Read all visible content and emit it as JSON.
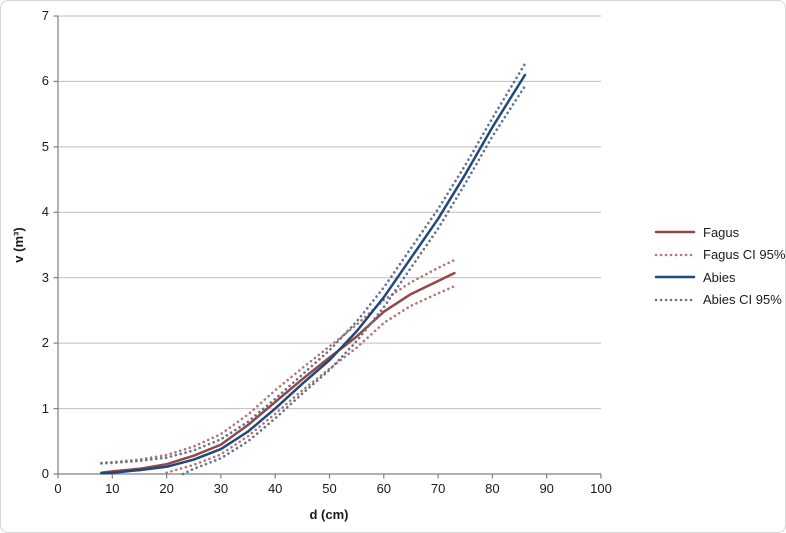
{
  "chart_data": {
    "type": "line",
    "title": "",
    "xlabel": "d (cm)",
    "ylabel": "v (m³)",
    "xlim": [
      0,
      100
    ],
    "ylim": [
      0,
      7
    ],
    "x_ticks": [
      0,
      10,
      20,
      30,
      40,
      50,
      60,
      70,
      80,
      90,
      100
    ],
    "y_ticks": [
      0,
      1,
      2,
      3,
      4,
      5,
      6,
      7
    ],
    "grid": "horizontal-only",
    "legend_position": "right",
    "series": [
      {
        "name": "Fagus",
        "style": "solid",
        "color": "#964643",
        "lines": [
          {
            "x": [
              8,
              10,
              15,
              20,
              25,
              30,
              35,
              40,
              45,
              50,
              55,
              60,
              65,
              70,
              73
            ],
            "y": [
              0.02,
              0.04,
              0.08,
              0.15,
              0.28,
              0.45,
              0.75,
              1.1,
              1.45,
              1.78,
              2.1,
              2.48,
              2.75,
              2.95,
              3.07
            ]
          }
        ]
      },
      {
        "name": "Fagus CI 95%",
        "style": "dotted",
        "color": "#BA7370",
        "lines": [
          {
            "x": [
              8,
              10,
              15,
              20,
              25,
              30,
              35,
              40,
              45,
              50,
              55,
              60,
              65,
              70,
              73
            ],
            "y": [
              0.17,
              0.18,
              0.22,
              0.29,
              0.42,
              0.61,
              0.91,
              1.28,
              1.62,
              1.95,
              2.28,
              2.66,
              2.93,
              3.15,
              3.27
            ]
          },
          {
            "x": [
              20,
              25,
              30,
              35,
              40,
              45,
              50,
              55,
              60,
              65,
              70,
              73
            ],
            "y": [
              0.02,
              0.14,
              0.3,
              0.58,
              0.92,
              1.28,
              1.61,
              1.93,
              2.31,
              2.57,
              2.76,
              2.87
            ]
          }
        ]
      },
      {
        "name": "Abies",
        "style": "solid",
        "color": "#1F497D",
        "lines": [
          {
            "x": [
              8,
              10,
              15,
              20,
              25,
              30,
              35,
              40,
              45,
              50,
              55,
              60,
              65,
              70,
              75,
              80,
              86
            ],
            "y": [
              0.01,
              0.02,
              0.06,
              0.11,
              0.22,
              0.38,
              0.65,
              1.0,
              1.38,
              1.74,
              2.18,
              2.7,
              3.3,
              3.9,
              4.58,
              5.3,
              6.1
            ]
          }
        ]
      },
      {
        "name": "Abies CI 95%",
        "style": "dotted",
        "color": "#5F7396",
        "lines": [
          {
            "x": [
              8,
              10,
              15,
              20,
              25,
              30,
              35,
              40,
              45,
              50,
              55,
              60,
              65,
              70,
              75,
              80,
              86
            ],
            "y": [
              0.16,
              0.17,
              0.2,
              0.25,
              0.36,
              0.53,
              0.8,
              1.15,
              1.52,
              1.89,
              2.33,
              2.85,
              3.45,
              4.05,
              4.72,
              5.44,
              6.27
            ]
          },
          {
            "x": [
              23,
              25,
              30,
              35,
              40,
              45,
              50,
              55,
              60,
              65,
              70,
              75,
              80,
              86
            ],
            "y": [
              0.0,
              0.08,
              0.24,
              0.5,
              0.85,
              1.23,
              1.59,
              2.03,
              2.55,
              3.15,
              3.75,
              4.44,
              5.16,
              5.93
            ]
          }
        ]
      }
    ]
  },
  "colors": {
    "background": "#FFFFFF",
    "frame_border": "#D5D5D5",
    "gridline": "#BFBFBF",
    "axis_line": "#808080",
    "text": "#1A1A1A"
  }
}
